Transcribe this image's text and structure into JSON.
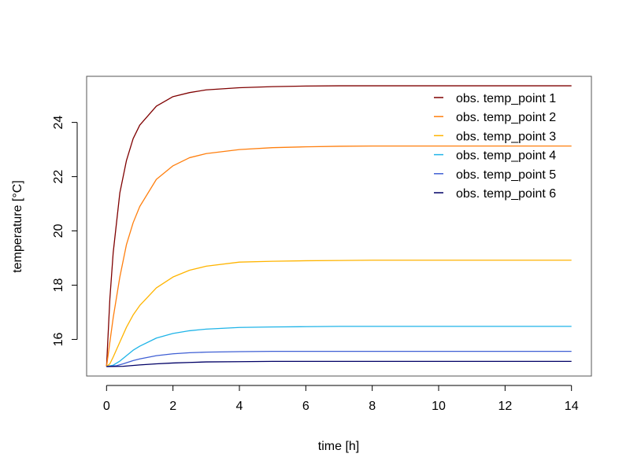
{
  "chart_data": {
    "type": "line",
    "xlabel": "time [h]",
    "ylabel": "temperature [°C]",
    "xlim": [
      -0.6,
      14.6
    ],
    "ylim": [
      14.65,
      25.7
    ],
    "x_ticks": [
      0,
      2,
      4,
      6,
      8,
      10,
      12,
      14
    ],
    "y_ticks": [
      16,
      18,
      20,
      22,
      24
    ],
    "grid": false,
    "legend_position": "top-right",
    "series": [
      {
        "name": "obs. temp_point 1",
        "color": "#7f0000",
        "x": [
          0,
          0.1,
          0.2,
          0.4,
          0.6,
          0.8,
          1,
          1.5,
          2,
          2.5,
          3,
          4,
          5,
          6,
          7,
          8,
          10,
          12,
          14
        ],
        "y": [
          15.0,
          17.5,
          19.2,
          21.4,
          22.6,
          23.4,
          23.9,
          24.6,
          24.95,
          25.1,
          25.2,
          25.28,
          25.32,
          25.34,
          25.35,
          25.35,
          25.35,
          25.35,
          25.35
        ]
      },
      {
        "name": "obs. temp_point 2",
        "color": "#ff7f0e",
        "x": [
          0,
          0.1,
          0.2,
          0.4,
          0.6,
          0.8,
          1,
          1.5,
          2,
          2.5,
          3,
          4,
          5,
          6,
          7,
          8,
          10,
          12,
          14
        ],
        "y": [
          15.0,
          15.9,
          16.8,
          18.3,
          19.5,
          20.3,
          20.9,
          21.9,
          22.4,
          22.7,
          22.85,
          23.0,
          23.07,
          23.1,
          23.12,
          23.13,
          23.13,
          23.13,
          23.13
        ]
      },
      {
        "name": "obs. temp_point 3",
        "color": "#ffb400",
        "x": [
          0,
          0.1,
          0.2,
          0.4,
          0.6,
          0.8,
          1,
          1.5,
          2,
          2.5,
          3,
          4,
          5,
          6,
          7,
          8,
          10,
          12,
          14
        ],
        "y": [
          15.0,
          15.1,
          15.35,
          15.9,
          16.45,
          16.9,
          17.25,
          17.9,
          18.3,
          18.55,
          18.7,
          18.85,
          18.88,
          18.9,
          18.91,
          18.92,
          18.92,
          18.92,
          18.92
        ]
      },
      {
        "name": "obs. temp_point 4",
        "color": "#1fb4e8",
        "x": [
          0,
          0.2,
          0.4,
          0.6,
          0.8,
          1,
          1.5,
          2,
          2.5,
          3,
          4,
          5,
          6,
          7,
          8,
          10,
          12,
          14
        ],
        "y": [
          15.0,
          15.05,
          15.2,
          15.4,
          15.6,
          15.75,
          16.05,
          16.22,
          16.32,
          16.38,
          16.44,
          16.46,
          16.47,
          16.48,
          16.48,
          16.48,
          16.48,
          16.48
        ]
      },
      {
        "name": "obs. temp_point 5",
        "color": "#3f5fd4",
        "x": [
          0,
          0.3,
          0.5,
          0.8,
          1,
          1.5,
          2,
          2.5,
          3,
          4,
          5,
          6,
          7,
          8,
          10,
          12,
          14
        ],
        "y": [
          15.0,
          15.03,
          15.1,
          15.22,
          15.28,
          15.4,
          15.47,
          15.51,
          15.53,
          15.55,
          15.56,
          15.56,
          15.56,
          15.56,
          15.56,
          15.56,
          15.56
        ]
      },
      {
        "name": "obs. temp_point 6",
        "color": "#000066",
        "x": [
          0,
          0.5,
          1,
          1.5,
          2,
          2.5,
          3,
          4,
          5,
          6,
          8,
          10,
          12,
          14
        ],
        "y": [
          15.0,
          15.01,
          15.06,
          15.1,
          15.13,
          15.15,
          15.17,
          15.18,
          15.19,
          15.19,
          15.19,
          15.19,
          15.19,
          15.19
        ]
      }
    ]
  }
}
